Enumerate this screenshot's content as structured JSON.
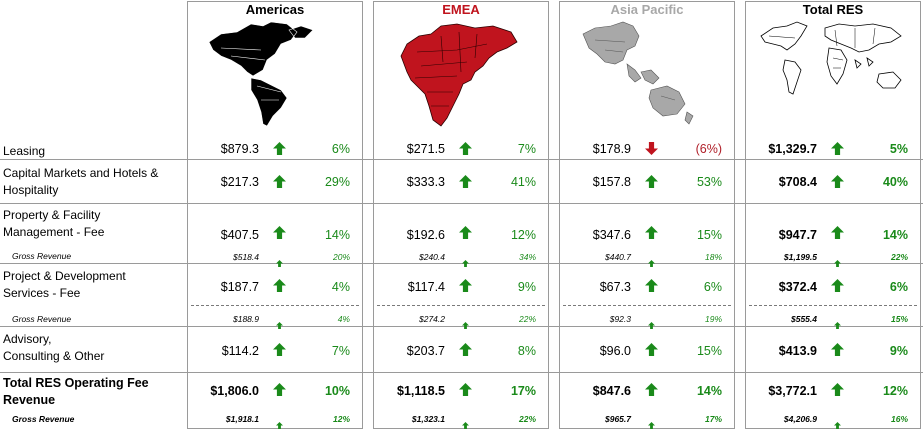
{
  "regions": [
    {
      "name": "Americas",
      "color": "#000000",
      "icon": "americas-map-icon"
    },
    {
      "name": "EMEA",
      "color": "#c0141e",
      "icon": "emea-map-icon"
    },
    {
      "name": "Asia Pacific",
      "color": "#a8a8a8",
      "icon": "asia-pacific-map-icon"
    },
    {
      "name": "Total RES",
      "color": "#000000",
      "icon": "world-map-icon"
    }
  ],
  "rows": [
    {
      "label": [
        "Leasing"
      ],
      "style": "normal",
      "cells": [
        [
          "$879.3",
          "up",
          "6%"
        ],
        [
          "$271.5",
          "up",
          "7%"
        ],
        [
          "$178.9",
          "down",
          "(6%)"
        ],
        [
          "$1,329.7",
          "up",
          "5%"
        ]
      ]
    },
    {
      "label": [
        "Capital Markets and Hotels &",
        "Hospitality"
      ],
      "style": "normal",
      "cells": [
        [
          "$217.3",
          "up",
          "29%"
        ],
        [
          "$333.3",
          "up",
          "41%"
        ],
        [
          "$157.8",
          "up",
          "53%"
        ],
        [
          "$708.4",
          "up",
          "40%"
        ]
      ]
    },
    {
      "label": [
        "Property & Facility",
        "Management - Fee"
      ],
      "style": "normal",
      "cells": [
        [
          "$407.5",
          "up",
          "14%"
        ],
        [
          "$192.6",
          "up",
          "12%"
        ],
        [
          "$347.6",
          "up",
          "15%"
        ],
        [
          "$947.7",
          "up",
          "14%"
        ]
      ]
    },
    {
      "label": [
        "Gross Revenue"
      ],
      "style": "gross",
      "cells": [
        [
          "$518.4",
          "up",
          "20%"
        ],
        [
          "$240.4",
          "up",
          "34%"
        ],
        [
          "$440.7",
          "up",
          "18%"
        ],
        [
          "$1,199.5",
          "up",
          "22%"
        ]
      ]
    },
    {
      "label": [
        "Project & Development",
        "Services - Fee"
      ],
      "style": "normal",
      "cells": [
        [
          "$187.7",
          "up",
          "4%"
        ],
        [
          "$117.4",
          "up",
          "9%"
        ],
        [
          "$67.3",
          "up",
          "6%"
        ],
        [
          "$372.4",
          "up",
          "6%"
        ]
      ]
    },
    {
      "label": [
        "Gross Revenue"
      ],
      "style": "gross",
      "cells": [
        [
          "$188.9",
          "up",
          "4%"
        ],
        [
          "$274.2",
          "up",
          "22%"
        ],
        [
          "$92.3",
          "up",
          "19%"
        ],
        [
          "$555.4",
          "up",
          "15%"
        ]
      ]
    },
    {
      "label": [
        "Advisory,",
        "Consulting & Other"
      ],
      "style": "normal",
      "cells": [
        [
          "$114.2",
          "up",
          "7%"
        ],
        [
          "$203.7",
          "up",
          "8%"
        ],
        [
          "$96.0",
          "up",
          "15%"
        ],
        [
          "$413.9",
          "up",
          "9%"
        ]
      ]
    },
    {
      "label": [
        "Total RES Operating Fee",
        "Revenue"
      ],
      "style": "bold",
      "cells": [
        [
          "$1,806.0",
          "up",
          "10%"
        ],
        [
          "$1,118.5",
          "up",
          "17%"
        ],
        [
          "$847.6",
          "up",
          "14%"
        ],
        [
          "$3,772.1",
          "up",
          "12%"
        ]
      ]
    },
    {
      "label": [
        "Gross Revenue"
      ],
      "style": "gross-bold",
      "cells": [
        [
          "$1,918.1",
          "up",
          "12%"
        ],
        [
          "$1,323.1",
          "up",
          "22%"
        ],
        [
          "$965.7",
          "up",
          "17%"
        ],
        [
          "$4,206.9",
          "up",
          "16%"
        ]
      ]
    }
  ],
  "colors": {
    "up": "#1a8a1a",
    "down": "#c0141e"
  }
}
